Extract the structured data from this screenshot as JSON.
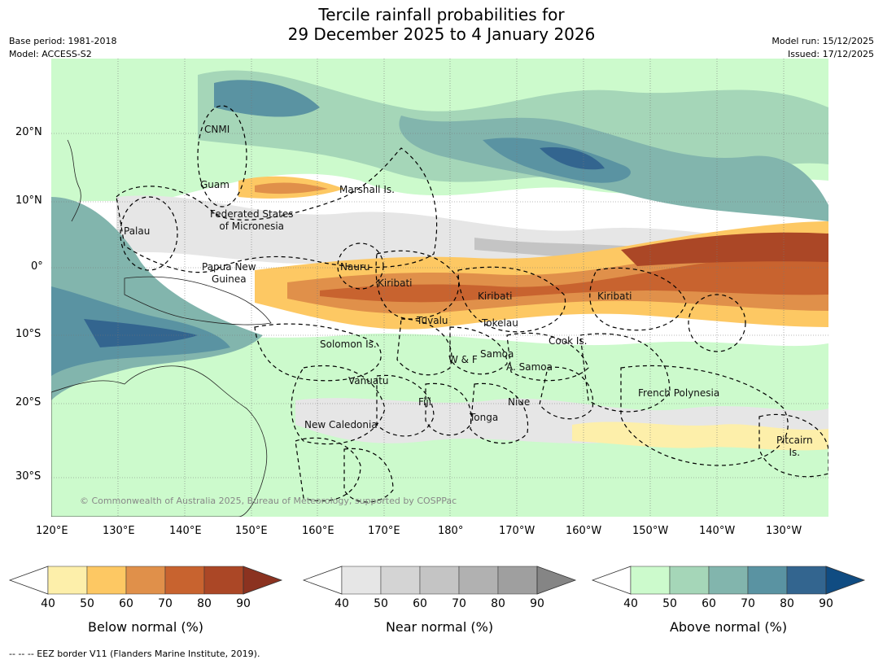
{
  "header": {
    "title_line1": "Tercile rainfall probabilities for",
    "title_line2": "29 December 2025 to 4 January 2026",
    "base_period": "Base period: 1981-2018",
    "model": "Model: ACCESS-S2",
    "model_run": "Model run: 15/12/2025",
    "issued": "Issued: 17/12/2025"
  },
  "map": {
    "lat_labels": [
      "20°N",
      "10°N",
      "0°",
      "10°S",
      "20°S",
      "30°S"
    ],
    "lon_labels": [
      "120°E",
      "130°E",
      "140°E",
      "150°E",
      "160°E",
      "170°E",
      "180°",
      "170°W",
      "160°W",
      "150°W",
      "140°W",
      "130°W"
    ],
    "regions": [
      {
        "name": "CNMI"
      },
      {
        "name": "Guam"
      },
      {
        "name": "Marshall Is."
      },
      {
        "name": "Federated States\nof Micronesia"
      },
      {
        "name": "Palau"
      },
      {
        "name": "Papua New\nGuinea"
      },
      {
        "name": "Nauru"
      },
      {
        "name": "Kiribati"
      },
      {
        "name": "Kiribati"
      },
      {
        "name": "Kiribati"
      },
      {
        "name": "Tuvalu"
      },
      {
        "name": "Tokelau"
      },
      {
        "name": "Solomon Is."
      },
      {
        "name": "Samoa"
      },
      {
        "name": "W & F"
      },
      {
        "name": "A. Samoa"
      },
      {
        "name": "Cook Is."
      },
      {
        "name": "Vanuatu"
      },
      {
        "name": "Fiji"
      },
      {
        "name": "Niue"
      },
      {
        "name": "Tonga"
      },
      {
        "name": "French Polynesia"
      },
      {
        "name": "New Caledonia"
      },
      {
        "name": "Pitcairn\nIs."
      }
    ],
    "copyright": "© Commonwealth of Australia 2025, Bureau of Meteorology, supported by COSPPac",
    "colors": {
      "ocean": "#ffffff",
      "below": [
        "#fdefaa",
        "#fdc863",
        "#e0904a",
        "#c8632f",
        "#ab4726",
        "#8b3220"
      ],
      "near": [
        "#e6e6e6",
        "#d4d4d4",
        "#c4c4c4",
        "#b1b1b1",
        "#9f9f9f",
        "#858585"
      ],
      "above": [
        "#ccfacc",
        "#a5d6b8",
        "#82b5ad",
        "#5a93a2",
        "#33658f",
        "#104c82"
      ]
    }
  },
  "colorbars": [
    {
      "label": "Below normal (%)",
      "ticks": [
        "40",
        "50",
        "60",
        "70",
        "80",
        "90"
      ]
    },
    {
      "label": "Near normal (%)",
      "ticks": [
        "40",
        "50",
        "60",
        "70",
        "80",
        "90"
      ]
    },
    {
      "label": "Above normal (%)",
      "ticks": [
        "40",
        "50",
        "60",
        "70",
        "80",
        "90"
      ]
    }
  ],
  "footnote": "--  --  -- EEZ border V11 (Flanders Marine Institute, 2019)."
}
